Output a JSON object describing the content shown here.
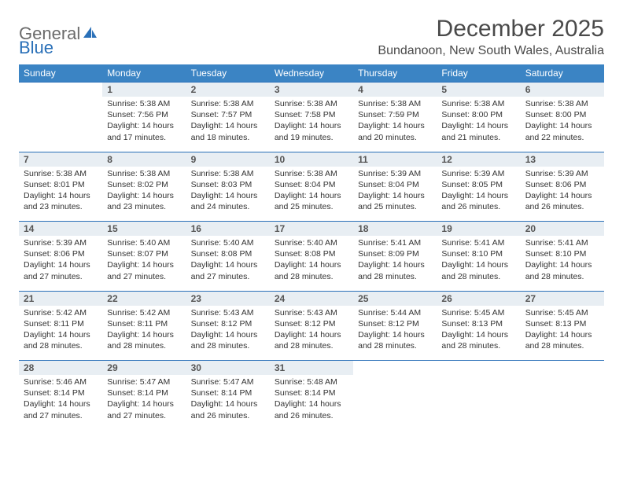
{
  "brand": {
    "general": "General",
    "blue": "Blue"
  },
  "title": "December 2025",
  "location": "Bundanoon, New South Wales, Australia",
  "colors": {
    "header_bg": "#3b84c4",
    "header_text": "#ffffff",
    "daynum_bg": "#e8eef3",
    "daynum_border": "#2a70b8",
    "body_text": "#333333",
    "logo_gray": "#6b6b6b",
    "logo_blue": "#2a70b8"
  },
  "daysOfWeek": [
    "Sunday",
    "Monday",
    "Tuesday",
    "Wednesday",
    "Thursday",
    "Friday",
    "Saturday"
  ],
  "weeks": [
    {
      "nums": [
        "",
        "1",
        "2",
        "3",
        "4",
        "5",
        "6"
      ],
      "cells": [
        "",
        "Sunrise: 5:38 AM\nSunset: 7:56 PM\nDaylight: 14 hours and 17 minutes.",
        "Sunrise: 5:38 AM\nSunset: 7:57 PM\nDaylight: 14 hours and 18 minutes.",
        "Sunrise: 5:38 AM\nSunset: 7:58 PM\nDaylight: 14 hours and 19 minutes.",
        "Sunrise: 5:38 AM\nSunset: 7:59 PM\nDaylight: 14 hours and 20 minutes.",
        "Sunrise: 5:38 AM\nSunset: 8:00 PM\nDaylight: 14 hours and 21 minutes.",
        "Sunrise: 5:38 AM\nSunset: 8:00 PM\nDaylight: 14 hours and 22 minutes."
      ]
    },
    {
      "nums": [
        "7",
        "8",
        "9",
        "10",
        "11",
        "12",
        "13"
      ],
      "cells": [
        "Sunrise: 5:38 AM\nSunset: 8:01 PM\nDaylight: 14 hours and 23 minutes.",
        "Sunrise: 5:38 AM\nSunset: 8:02 PM\nDaylight: 14 hours and 23 minutes.",
        "Sunrise: 5:38 AM\nSunset: 8:03 PM\nDaylight: 14 hours and 24 minutes.",
        "Sunrise: 5:38 AM\nSunset: 8:04 PM\nDaylight: 14 hours and 25 minutes.",
        "Sunrise: 5:39 AM\nSunset: 8:04 PM\nDaylight: 14 hours and 25 minutes.",
        "Sunrise: 5:39 AM\nSunset: 8:05 PM\nDaylight: 14 hours and 26 minutes.",
        "Sunrise: 5:39 AM\nSunset: 8:06 PM\nDaylight: 14 hours and 26 minutes."
      ]
    },
    {
      "nums": [
        "14",
        "15",
        "16",
        "17",
        "18",
        "19",
        "20"
      ],
      "cells": [
        "Sunrise: 5:39 AM\nSunset: 8:06 PM\nDaylight: 14 hours and 27 minutes.",
        "Sunrise: 5:40 AM\nSunset: 8:07 PM\nDaylight: 14 hours and 27 minutes.",
        "Sunrise: 5:40 AM\nSunset: 8:08 PM\nDaylight: 14 hours and 27 minutes.",
        "Sunrise: 5:40 AM\nSunset: 8:08 PM\nDaylight: 14 hours and 28 minutes.",
        "Sunrise: 5:41 AM\nSunset: 8:09 PM\nDaylight: 14 hours and 28 minutes.",
        "Sunrise: 5:41 AM\nSunset: 8:10 PM\nDaylight: 14 hours and 28 minutes.",
        "Sunrise: 5:41 AM\nSunset: 8:10 PM\nDaylight: 14 hours and 28 minutes."
      ]
    },
    {
      "nums": [
        "21",
        "22",
        "23",
        "24",
        "25",
        "26",
        "27"
      ],
      "cells": [
        "Sunrise: 5:42 AM\nSunset: 8:11 PM\nDaylight: 14 hours and 28 minutes.",
        "Sunrise: 5:42 AM\nSunset: 8:11 PM\nDaylight: 14 hours and 28 minutes.",
        "Sunrise: 5:43 AM\nSunset: 8:12 PM\nDaylight: 14 hours and 28 minutes.",
        "Sunrise: 5:43 AM\nSunset: 8:12 PM\nDaylight: 14 hours and 28 minutes.",
        "Sunrise: 5:44 AM\nSunset: 8:12 PM\nDaylight: 14 hours and 28 minutes.",
        "Sunrise: 5:45 AM\nSunset: 8:13 PM\nDaylight: 14 hours and 28 minutes.",
        "Sunrise: 5:45 AM\nSunset: 8:13 PM\nDaylight: 14 hours and 28 minutes."
      ]
    },
    {
      "nums": [
        "28",
        "29",
        "30",
        "31",
        "",
        "",
        ""
      ],
      "cells": [
        "Sunrise: 5:46 AM\nSunset: 8:14 PM\nDaylight: 14 hours and 27 minutes.",
        "Sunrise: 5:47 AM\nSunset: 8:14 PM\nDaylight: 14 hours and 27 minutes.",
        "Sunrise: 5:47 AM\nSunset: 8:14 PM\nDaylight: 14 hours and 26 minutes.",
        "Sunrise: 5:48 AM\nSunset: 8:14 PM\nDaylight: 14 hours and 26 minutes.",
        "",
        "",
        ""
      ]
    }
  ]
}
